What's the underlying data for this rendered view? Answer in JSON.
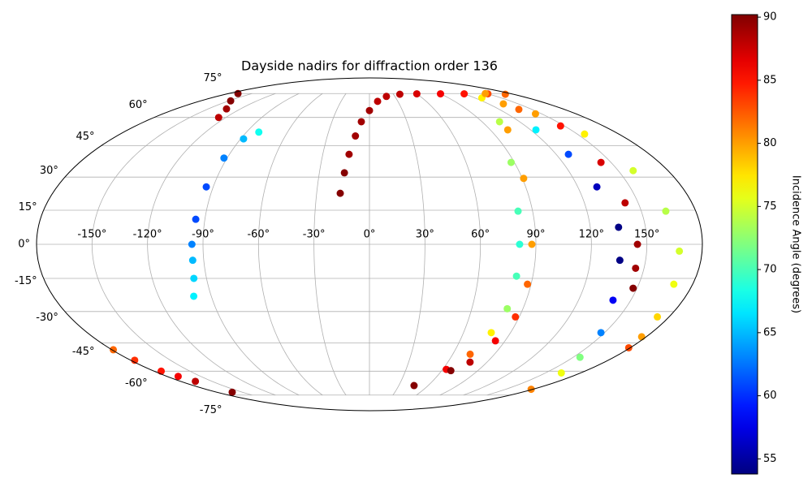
{
  "chart_data": {
    "type": "scatter",
    "projection": "mollweide",
    "title": "Dayside nadirs for diffraction order 136",
    "colorbar_label": "Incidence Angle (degrees)",
    "colormap": "jet",
    "clim": [
      53.8,
      90.2
    ],
    "cticks": [
      55,
      60,
      65,
      70,
      75,
      80,
      85,
      90
    ],
    "xlim": [
      -180,
      180
    ],
    "ylim": [
      -90,
      90
    ],
    "xticks": [
      {
        "value": -150,
        "label": "-150°"
      },
      {
        "value": -120,
        "label": "-120°"
      },
      {
        "value": -90,
        "label": "-90°"
      },
      {
        "value": -60,
        "label": "-60°"
      },
      {
        "value": -30,
        "label": "-30°"
      },
      {
        "value": 0,
        "label": "0°"
      },
      {
        "value": 30,
        "label": "30°"
      },
      {
        "value": 60,
        "label": "60°"
      },
      {
        "value": 90,
        "label": "90°"
      },
      {
        "value": 120,
        "label": "120°"
      },
      {
        "value": 150,
        "label": "150°"
      }
    ],
    "yticks": [
      {
        "value": -75,
        "label": "-75°"
      },
      {
        "value": -60,
        "label": "-60°"
      },
      {
        "value": -45,
        "label": "-45°"
      },
      {
        "value": -30,
        "label": "-30°"
      },
      {
        "value": -15,
        "label": "-15°"
      },
      {
        "value": 0,
        "label": "0°"
      },
      {
        "value": 15,
        "label": "15°"
      },
      {
        "value": 30,
        "label": "30°"
      },
      {
        "value": 45,
        "label": "45°"
      },
      {
        "value": 60,
        "label": "60°"
      },
      {
        "value": 75,
        "label": "75°"
      }
    ],
    "grid": true,
    "series": [
      {
        "x": [
          -126,
          -133,
          -148,
          -168
        ],
        "values": [
          60,
          65,
          70,
          75
        ],
        "incidence": [
          88,
          89,
          90,
          90
        ]
      },
      {
        "x": [
          -100,
          -97,
          -96,
          -96,
          -95,
          -94,
          -92,
          -88,
          -81
        ],
        "values": [
          -23,
          -15,
          -7,
          0,
          11,
          25.5,
          39,
          48.5,
          52
        ],
        "incidence": [
          67,
          66,
          65,
          63,
          61,
          61,
          63,
          65,
          68
        ]
      },
      {
        "x": [
          -179,
          -177,
          -174,
          -170,
          -166,
          -162
        ],
        "values": [
          -48.5,
          -54,
          -60,
          -63,
          -66,
          -73
        ],
        "incidence": [
          82,
          84,
          85,
          86,
          88,
          90
        ]
      },
      {
        "x": [
          -16.6,
          -15,
          -13.1,
          -10,
          -6.5,
          0,
          8.6,
          20,
          38,
          60,
          90,
          120,
          150,
          170
        ],
        "values": [
          22.6,
          32,
          40.8,
          50,
          57.6,
          64,
          69.7,
          73,
          74.5,
          74.8,
          74.8,
          74.8,
          74.8,
          74.5
        ],
        "incidence": [
          90,
          90,
          89,
          89,
          89,
          89,
          88,
          88,
          88,
          87,
          86,
          85,
          83,
          82
        ]
      },
      {
        "x": [
          128,
          104,
          88,
          82,
          81.2,
          81,
          80.8,
          77.7,
          72.5,
          63,
          45.6
        ],
        "values": [
          72,
          57.6,
          36.9,
          14.6,
          0,
          -14,
          -28.7,
          -40,
          -50.8,
          -59,
          -68.6
        ],
        "incidence": [
          77,
          74,
          73,
          70,
          69,
          70,
          73,
          77,
          82,
          86,
          90
        ]
      },
      {
        "x": [
          148,
          103,
          90.8,
          87.8,
          88,
          87.7,
          83.6,
          77,
          67.6
        ],
        "values": [
          75,
          53.2,
          29.4,
          0,
          -17.6,
          -32.5,
          -44,
          -55,
          -59.7
        ],
        "incidence": [
          80,
          80,
          80,
          80,
          82,
          84,
          86,
          88,
          90
        ]
      },
      {
        "x": [
          135,
          124,
          127.9,
          131,
          135.4,
          136,
          139.8,
          147.7,
          155,
          163.5,
          178
        ],
        "values": [
          68.1,
          53.2,
          40.8,
          25.5,
          7.5,
          -7,
          -24.8,
          -40,
          -52.4,
          -61,
          -71
        ],
        "incidence": [
          80,
          67,
          61,
          56,
          54,
          54,
          58,
          63,
          72,
          76,
          81
        ]
      },
      {
        "x": [
          138,
          147,
          143.8,
          142.7,
          144.9,
          145.4,
          147.8
        ],
        "values": [
          64.7,
          55.3,
          36.9,
          18.3,
          0,
          -10.5,
          -19.4
        ],
        "incidence": [
          82,
          85,
          87,
          88,
          89,
          89,
          90
        ]
      },
      {
        "x": [
          144.7,
          155.3,
          159,
          163.5,
          167.7,
          169.5,
          173,
          177,
          179
        ],
        "values": [
          62.1,
          51,
          33,
          14.6,
          -3,
          -17.6,
          -32.5,
          -42,
          -47.5
        ],
        "incidence": [
          80,
          77,
          75,
          74,
          75,
          76,
          78,
          80,
          83
        ]
      }
    ]
  }
}
